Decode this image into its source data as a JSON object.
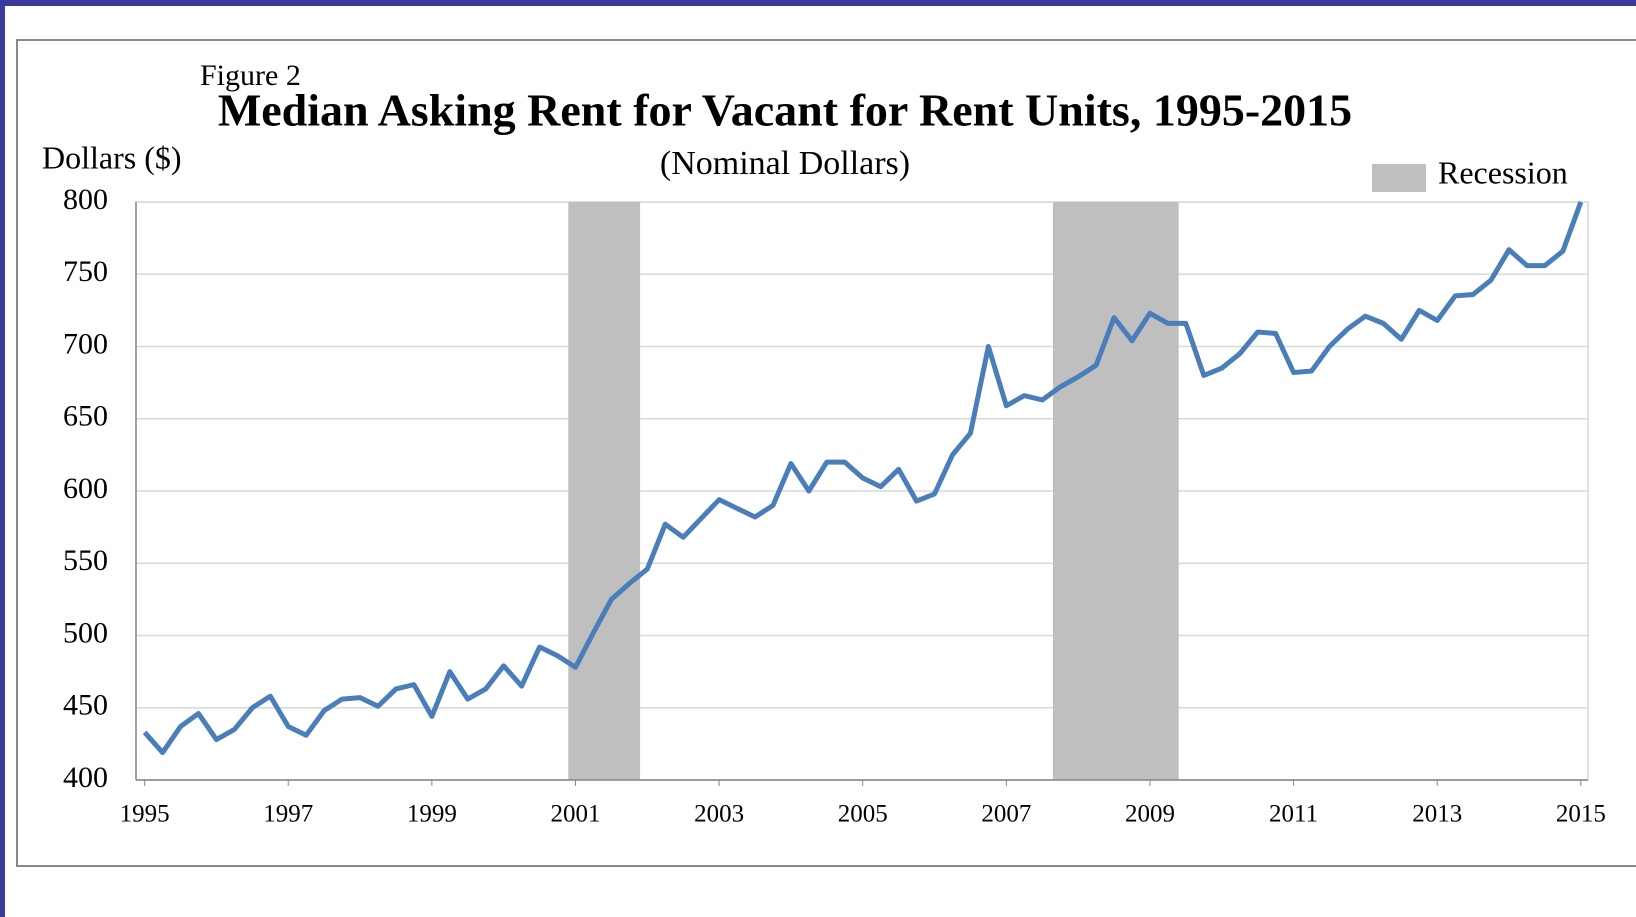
{
  "chart_data": {
    "type": "line",
    "figure_label": "Figure 2",
    "title": "Median Asking Rent for Vacant for Rent Units, 1995-2015",
    "subtitle": "(Nominal Dollars)",
    "y_label": "Dollars ($)",
    "x": [
      1995,
      1995.25,
      1995.5,
      1995.75,
      1996,
      1996.25,
      1996.5,
      1996.75,
      1997,
      1997.25,
      1997.5,
      1997.75,
      1998,
      1998.25,
      1998.5,
      1998.75,
      1999,
      1999.25,
      1999.5,
      1999.75,
      2000,
      2000.25,
      2000.5,
      2000.75,
      2001,
      2001.25,
      2001.5,
      2001.75,
      2002,
      2002.25,
      2002.5,
      2002.75,
      2003,
      2003.25,
      2003.5,
      2003.75,
      2004,
      2004.25,
      2004.5,
      2004.75,
      2005,
      2005.25,
      2005.5,
      2005.75,
      2006,
      2006.25,
      2006.5,
      2006.75,
      2007,
      2007.25,
      2007.5,
      2007.75,
      2008,
      2008.25,
      2008.5,
      2008.75,
      2009,
      2009.25,
      2009.5,
      2009.75,
      2010,
      2010.25,
      2010.5,
      2010.75,
      2011,
      2011.25,
      2011.5,
      2011.75,
      2012,
      2012.25,
      2012.5,
      2012.75,
      2013,
      2013.25,
      2013.5,
      2013.75,
      2014,
      2014.25,
      2014.5,
      2014.75,
      2015
    ],
    "series": [
      {
        "name": "Median asking rent",
        "color": "#4a7ebb",
        "values": [
          433,
          419,
          437,
          446,
          428,
          435,
          450,
          458,
          437,
          431,
          448,
          456,
          457,
          451,
          463,
          466,
          444,
          475,
          456,
          463,
          479,
          465,
          492,
          486,
          478,
          502,
          525,
          536,
          546,
          577,
          568,
          581,
          594,
          588,
          582,
          590,
          619,
          600,
          620,
          620,
          609,
          603,
          615,
          593,
          598,
          625,
          640,
          700,
          659,
          666,
          663,
          672,
          679,
          687,
          720,
          704,
          723,
          716,
          716,
          680,
          685,
          695,
          710,
          709,
          682,
          683,
          700,
          712,
          721,
          716,
          705,
          725,
          718,
          735,
          736,
          746,
          767,
          756,
          756,
          766,
          800
        ]
      }
    ],
    "recessions": {
      "name": "Recession",
      "color": "#bfbfbf",
      "spans": [
        [
          2000.9,
          2001.9
        ],
        [
          2007.65,
          2009.4
        ]
      ]
    },
    "xlim": [
      1994.88,
      2015.1
    ],
    "xticks": [
      1995,
      1997,
      1999,
      2001,
      2003,
      2005,
      2007,
      2009,
      2011,
      2013,
      2015
    ],
    "ylim": [
      400,
      800
    ],
    "yticks": [
      400,
      450,
      500,
      550,
      600,
      650,
      700,
      750,
      800
    ],
    "grid": true
  }
}
